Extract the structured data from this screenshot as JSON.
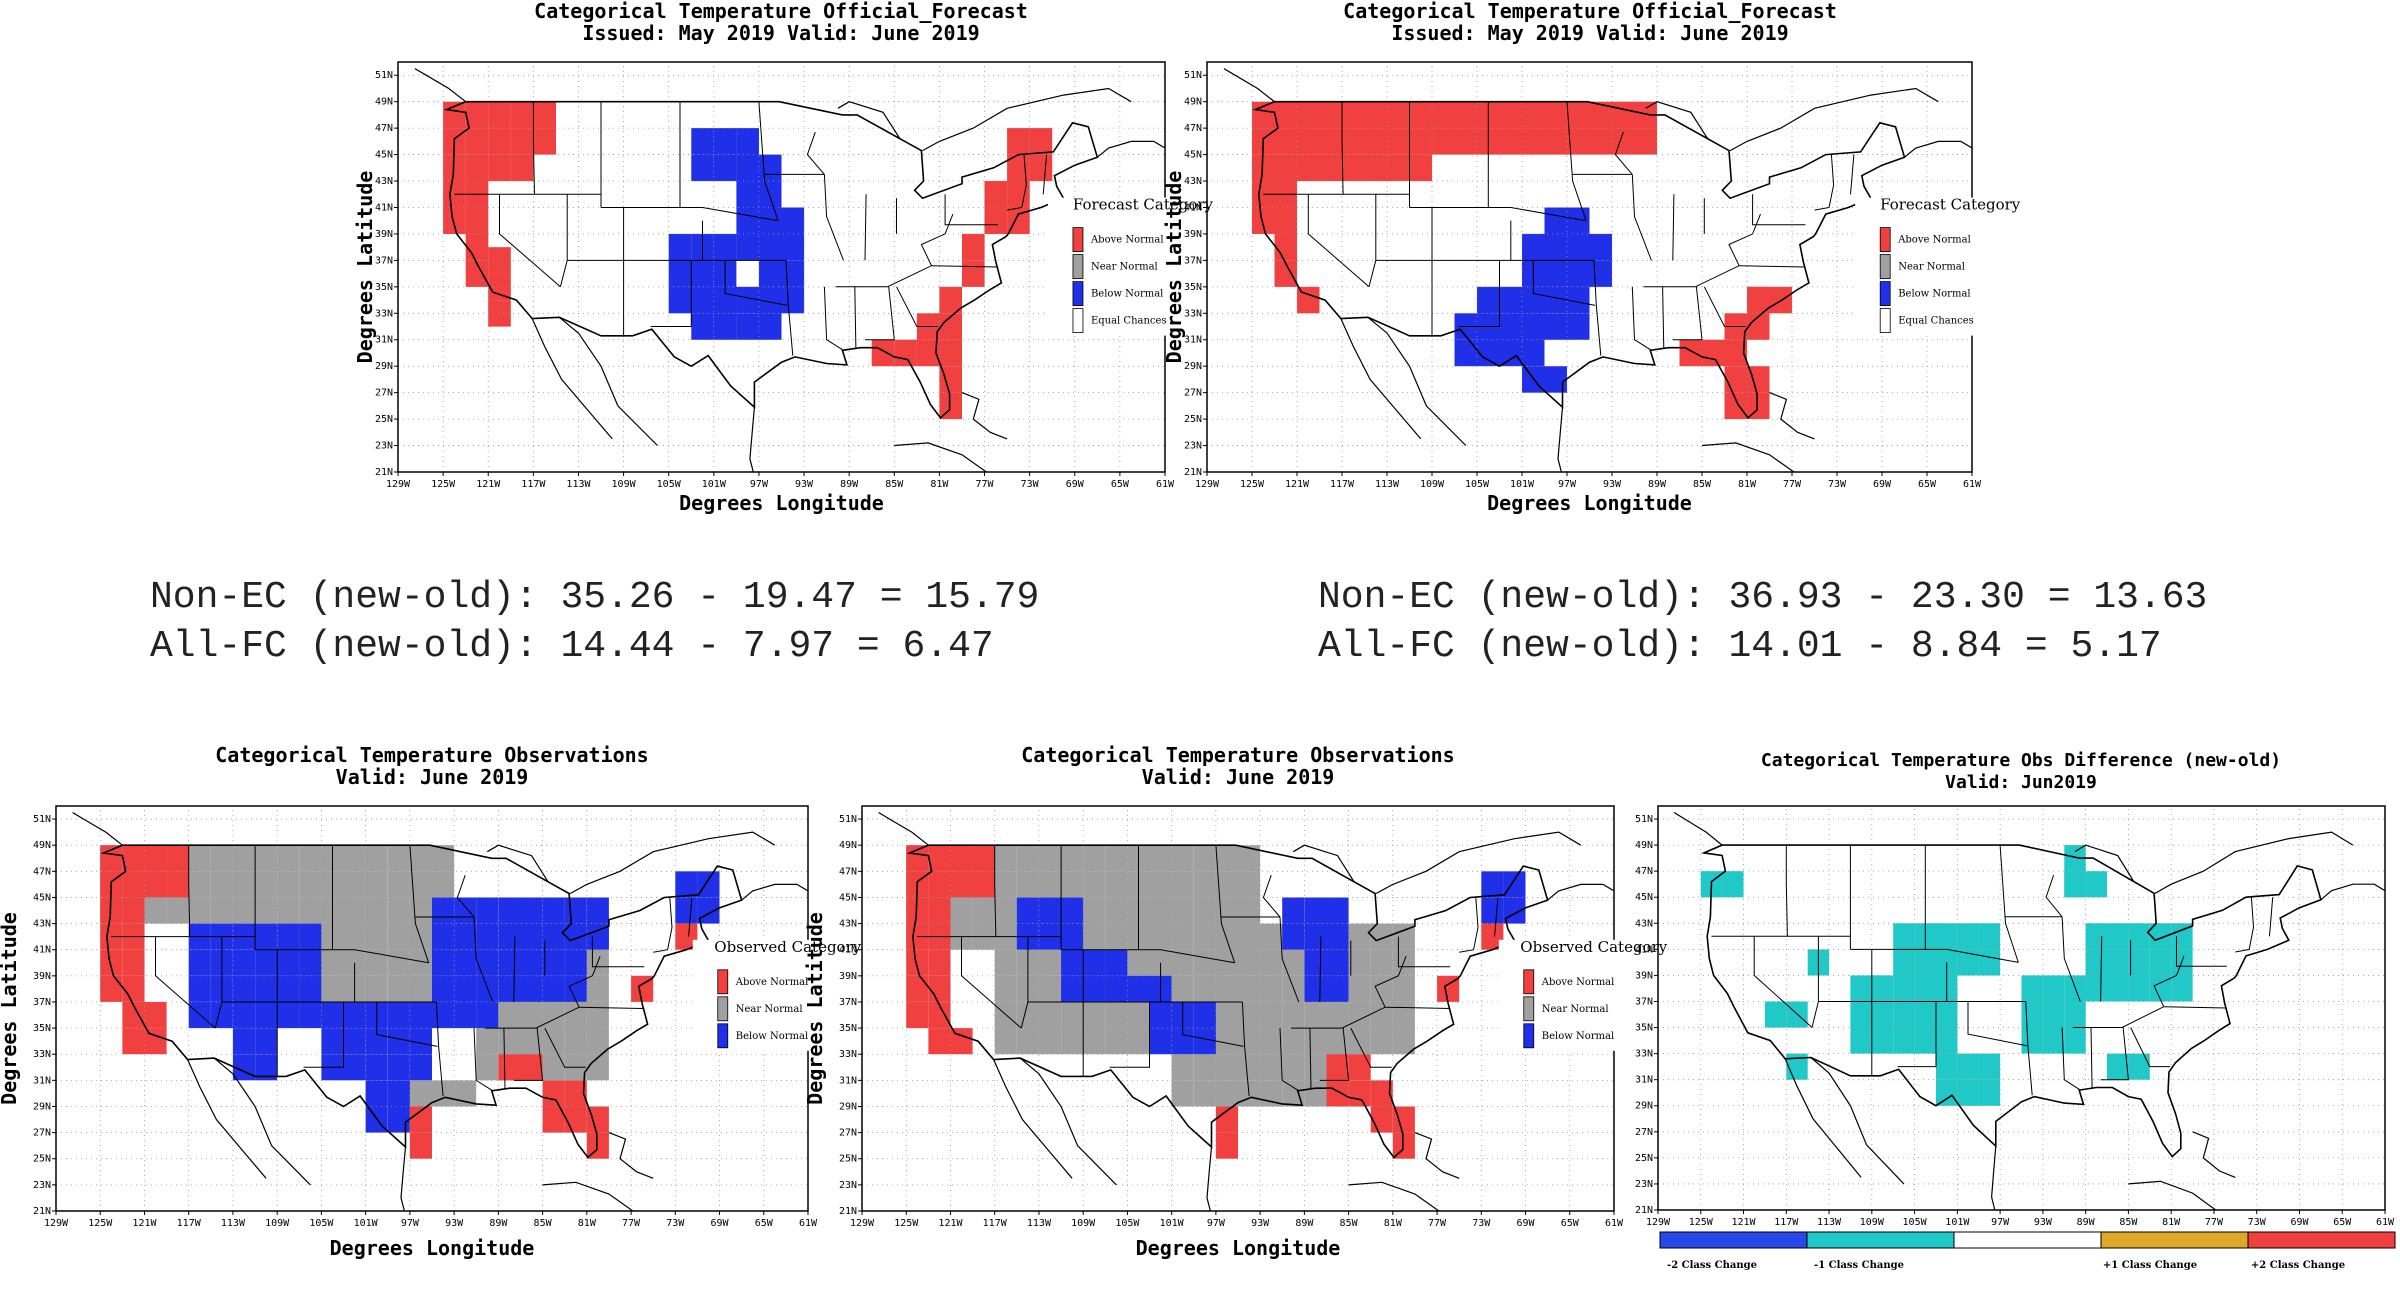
{
  "panels": [
    {
      "id": "fc_new",
      "title": [
        "Categorical Temperature Official_Forecast",
        "Issued: May 2019 Valid: June 2019"
      ],
      "xlabel": "Degrees Longitude",
      "ylabel": "Degrees Latitude",
      "legend_title": "Forecast Category",
      "legend": [
        {
          "label": "Above Normal",
          "color": "#f04040"
        },
        {
          "label": "Near Normal",
          "color": "#a0a0a0"
        },
        {
          "label": "Below Normal",
          "color": "#2030e8"
        },
        {
          "label": "Equal Chances",
          "color": "#ffffff"
        }
      ]
    },
    {
      "id": "fc_old",
      "title": [
        "Categorical Temperature Official_Forecast",
        "Issued: May 2019 Valid: June 2019"
      ],
      "xlabel": "Degrees Longitude",
      "ylabel": "Degrees Latitude",
      "legend_title": "Forecast Category",
      "legend": [
        {
          "label": "Above Normal",
          "color": "#f04040"
        },
        {
          "label": "Near Normal",
          "color": "#a0a0a0"
        },
        {
          "label": "Below Normal",
          "color": "#2030e8"
        },
        {
          "label": "Equal Chances",
          "color": "#ffffff"
        }
      ]
    },
    {
      "id": "obs_new",
      "title": [
        "Categorical Temperature Observations",
        "Valid: June 2019"
      ],
      "xlabel": "Degrees Longitude",
      "ylabel": "Degrees Latitude",
      "legend_title": "Observed Category",
      "legend": [
        {
          "label": "Above Normal",
          "color": "#f04040"
        },
        {
          "label": "Near Normal",
          "color": "#a0a0a0"
        },
        {
          "label": "Below Normal",
          "color": "#2030e8"
        }
      ]
    },
    {
      "id": "obs_old",
      "title": [
        "Categorical Temperature Observations",
        "Valid: June 2019"
      ],
      "xlabel": "Degrees Longitude",
      "ylabel": "Degrees Latitude",
      "legend_title": "Observed Category",
      "legend": [
        {
          "label": "Above Normal",
          "color": "#f04040"
        },
        {
          "label": "Near Normal",
          "color": "#a0a0a0"
        },
        {
          "label": "Below Normal",
          "color": "#2030e8"
        }
      ]
    },
    {
      "id": "obs_diff",
      "title": [
        "Categorical Temperature Obs Difference (new-old)",
        "Valid: Jun2019"
      ],
      "xlabel": "",
      "ylabel": "",
      "legend_title": "",
      "colorbar": [
        {
          "label": "-2 Class Change",
          "color": "#2848e8"
        },
        {
          "label": "-1 Class Change",
          "color": "#20c8c8"
        },
        {
          "label": "",
          "color": "#ffffff"
        },
        {
          "label": "+1 Class Change",
          "color": "#e0a828"
        },
        {
          "label": "+2 Class Change",
          "color": "#f04040"
        }
      ]
    }
  ],
  "lon_ticks": [
    "129W",
    "125W",
    "121W",
    "117W",
    "113W",
    "109W",
    "105W",
    "101W",
    "97W",
    "93W",
    "89W",
    "85W",
    "81W",
    "77W",
    "73W",
    "69W",
    "65W",
    "61W"
  ],
  "lat_ticks": [
    "21N",
    "23N",
    "25N",
    "27N",
    "29N",
    "31N",
    "33N",
    "35N",
    "37N",
    "39N",
    "41N",
    "43N",
    "45N",
    "47N",
    "49N",
    "51N"
  ],
  "stats": {
    "left": [
      "Non-EC (new-old): 35.26 - 19.47 = 15.79",
      "All-FC (new-old): 14.44 - 7.97 = 6.47"
    ],
    "right": [
      "Non-EC (new-old): 36.93 - 23.30 = 13.63",
      "All-FC (new-old): 14.01 - 8.84 = 5.17"
    ]
  }
}
